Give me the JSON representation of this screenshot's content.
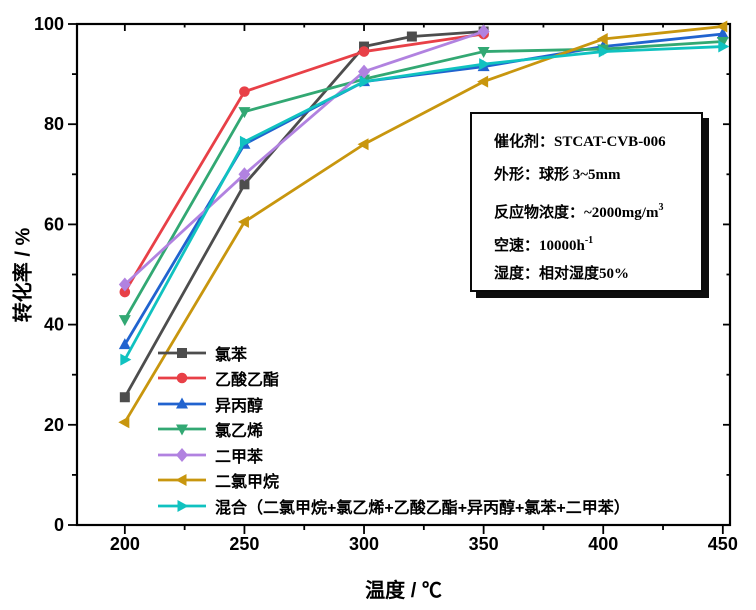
{
  "chart_data": {
    "type": "line",
    "title": "",
    "xlabel": "温度 / ℃",
    "ylabel": "转化率 / %",
    "xlim": [
      180,
      453
    ],
    "ylim": [
      0,
      100
    ],
    "x_major_ticks": [
      200,
      250,
      300,
      350,
      400,
      450
    ],
    "x_minor_ticks": [
      225,
      275,
      325,
      375,
      425
    ],
    "y_major_ticks": [
      0,
      20,
      40,
      60,
      80,
      100
    ],
    "y_minor_ticks": [
      10,
      30,
      50,
      70,
      90
    ],
    "grid": false,
    "legend_position": "inside-bottom-left",
    "series": [
      {
        "name": "氯苯",
        "color": "#4d4d4d",
        "marker": "square",
        "points": [
          [
            200,
            25.5
          ],
          [
            250,
            68
          ],
          [
            300,
            95.5
          ],
          [
            320,
            97.5
          ],
          [
            350,
            98.5
          ]
        ]
      },
      {
        "name": "乙酸乙酯",
        "color": "#e84047",
        "marker": "circle",
        "points": [
          [
            200,
            46.5
          ],
          [
            250,
            86.5
          ],
          [
            300,
            94.5
          ],
          [
            350,
            98
          ]
        ]
      },
      {
        "name": "异丙醇",
        "color": "#2163cf",
        "marker": "triangle-up",
        "points": [
          [
            200,
            36
          ],
          [
            250,
            76
          ],
          [
            300,
            88.5
          ],
          [
            350,
            91.5
          ],
          [
            400,
            95.5
          ],
          [
            450,
            98
          ]
        ]
      },
      {
        "name": "氯乙烯",
        "color": "#32a873",
        "marker": "triangle-down",
        "points": [
          [
            200,
            41
          ],
          [
            250,
            82.5
          ],
          [
            300,
            89
          ],
          [
            350,
            94.5
          ],
          [
            400,
            95
          ],
          [
            450,
            96.5
          ]
        ]
      },
      {
        "name": "二甲苯",
        "color": "#b182e0",
        "marker": "diamond",
        "points": [
          [
            200,
            48
          ],
          [
            250,
            70
          ],
          [
            300,
            90.5
          ],
          [
            350,
            98.5
          ]
        ]
      },
      {
        "name": "二氯甲烷",
        "color": "#c8960e",
        "marker": "triangle-left",
        "points": [
          [
            200,
            20.5
          ],
          [
            250,
            60.5
          ],
          [
            300,
            76
          ],
          [
            350,
            88.5
          ],
          [
            400,
            97
          ],
          [
            450,
            99.5
          ]
        ]
      },
      {
        "name": "混合（二氯甲烷+氯乙烯+乙酸乙酯+异丙醇+氯苯+二甲苯）",
        "color": "#10c2c0",
        "marker": "triangle-right",
        "points": [
          [
            200,
            33
          ],
          [
            250,
            76.5
          ],
          [
            300,
            88.5
          ],
          [
            350,
            92
          ],
          [
            400,
            94.5
          ],
          [
            450,
            95.5
          ]
        ]
      }
    ]
  },
  "info_box": {
    "lines": [
      {
        "pre": "催化剂：STCAT-CVB-006",
        "sup": ""
      },
      {
        "pre": "外形：球形 3~5mm",
        "sup": ""
      },
      {
        "pre": "反应物浓度：~2000mg/m",
        "sup": "3"
      },
      {
        "pre": "空速：10000h",
        "sup": "-1"
      },
      {
        "pre": "湿度：相对湿度50%",
        "sup": ""
      }
    ]
  }
}
